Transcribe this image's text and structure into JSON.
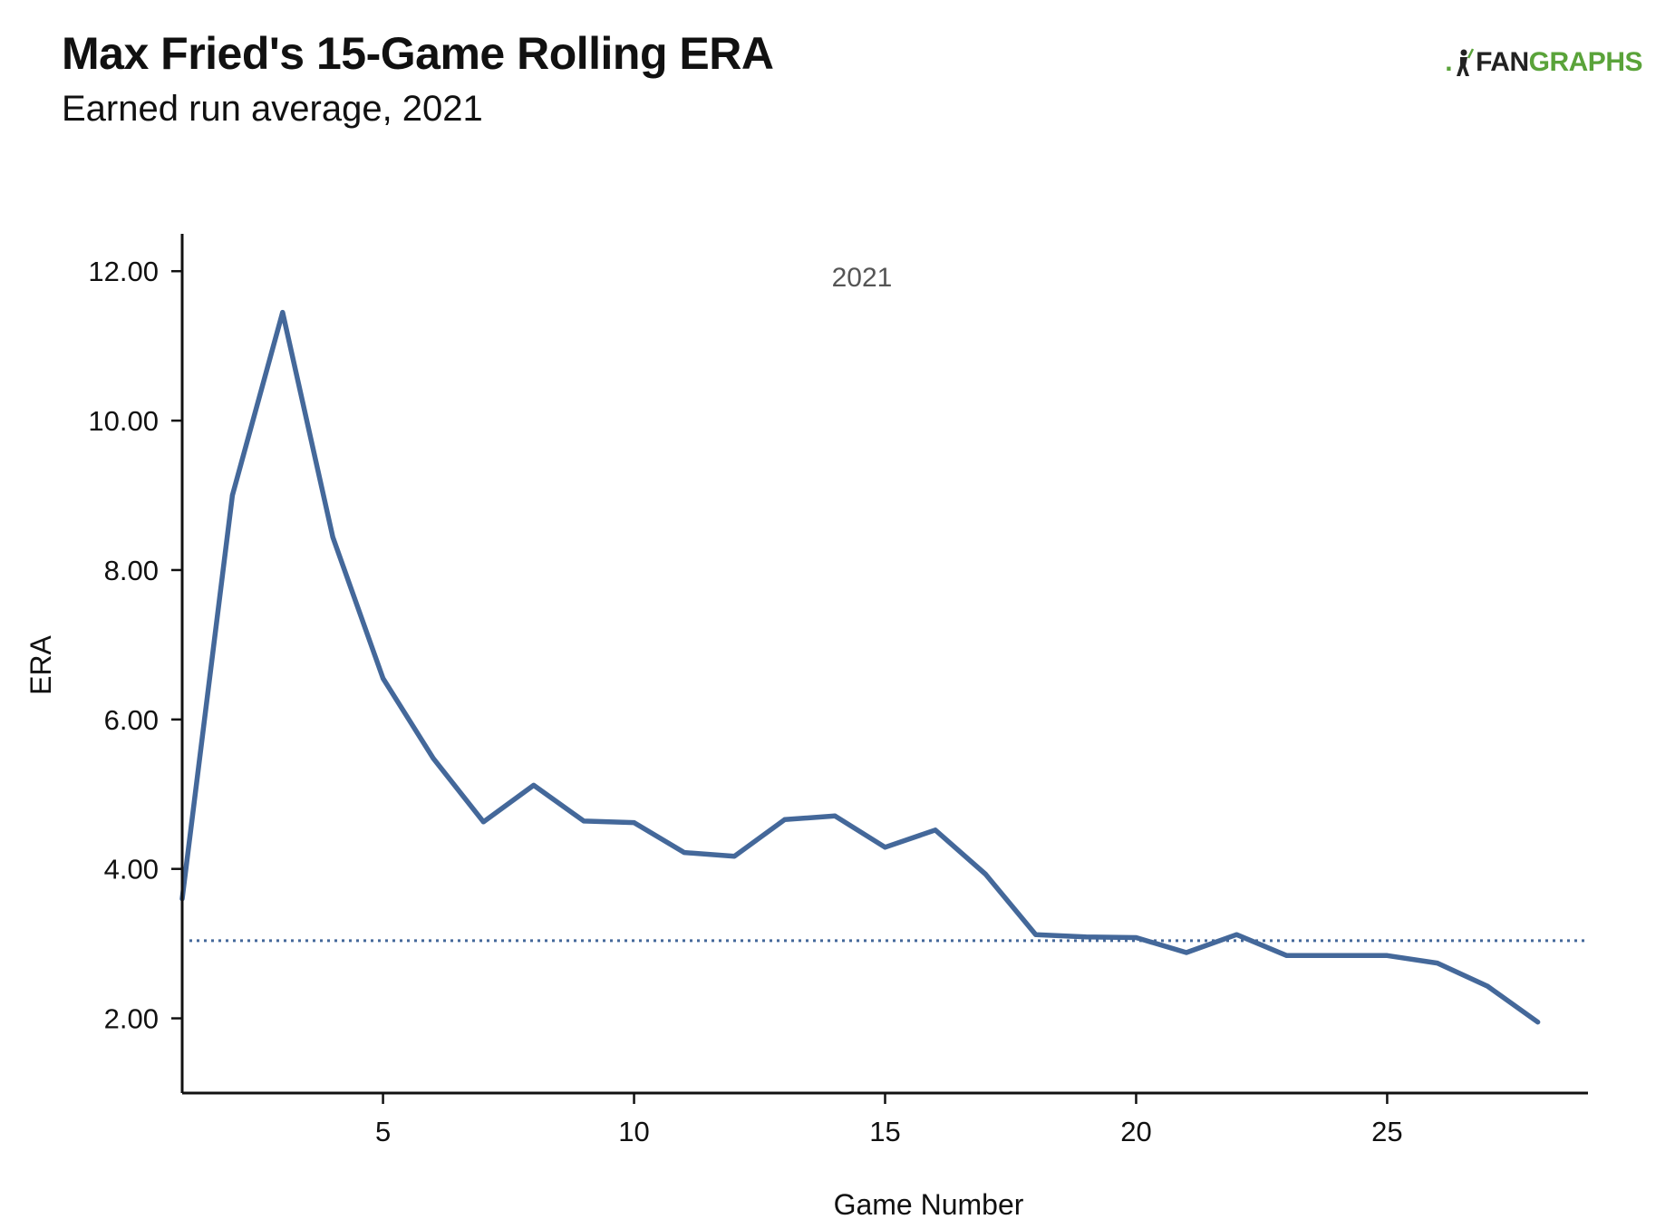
{
  "header": {
    "title": "Max Fried's 15-Game Rolling ERA",
    "subtitle": "Earned run average, 2021"
  },
  "logo": {
    "dot": ".",
    "fan": "FAN",
    "graphs": "GRAPHS",
    "icon": "batter-icon",
    "colors": {
      "brand_green": "#5aa33a",
      "brand_dark": "#222222"
    }
  },
  "chart_data": {
    "type": "line",
    "xlabel": "Game Number",
    "ylabel": "ERA",
    "annotation": "2021",
    "xlim": [
      1,
      29
    ],
    "ylim": [
      1.0,
      12.5
    ],
    "x_ticks": [
      5,
      10,
      15,
      20,
      25
    ],
    "y_ticks": [
      2,
      4,
      6,
      8,
      10,
      12
    ],
    "y_tick_labels": [
      "2.00",
      "4.00",
      "6.00",
      "8.00",
      "10.00",
      "12.00"
    ],
    "grid": false,
    "series": [
      {
        "color": "#44689a",
        "x": [
          1,
          2,
          3,
          4,
          5,
          6,
          7,
          8,
          9,
          10,
          11,
          12,
          13,
          14,
          15,
          16,
          17,
          18,
          19,
          20,
          21,
          22,
          23,
          24,
          25,
          26,
          27,
          28
        ],
        "values": [
          3.6,
          9.0,
          11.45,
          8.44,
          6.55,
          5.48,
          4.63,
          5.12,
          4.64,
          4.62,
          4.22,
          4.17,
          4.66,
          4.71,
          4.29,
          4.52,
          3.93,
          3.12,
          3.09,
          3.08,
          2.88,
          3.12,
          2.84,
          2.84,
          2.84,
          2.74,
          2.43,
          1.95
        ]
      }
    ],
    "reference_line": {
      "y": 3.04,
      "style": "dotted",
      "color": "#44689a"
    }
  }
}
